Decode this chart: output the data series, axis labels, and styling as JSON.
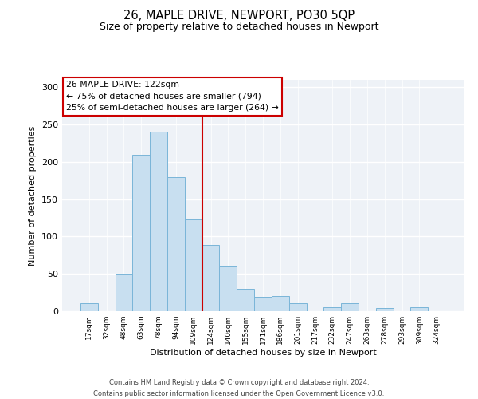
{
  "title": "26, MAPLE DRIVE, NEWPORT, PO30 5QP",
  "subtitle": "Size of property relative to detached houses in Newport",
  "xlabel": "Distribution of detached houses by size in Newport",
  "ylabel": "Number of detached properties",
  "bar_labels": [
    "17sqm",
    "32sqm",
    "48sqm",
    "63sqm",
    "78sqm",
    "94sqm",
    "109sqm",
    "124sqm",
    "140sqm",
    "155sqm",
    "171sqm",
    "186sqm",
    "201sqm",
    "217sqm",
    "232sqm",
    "247sqm",
    "263sqm",
    "278sqm",
    "293sqm",
    "309sqm",
    "324sqm"
  ],
  "bar_values": [
    11,
    0,
    50,
    209,
    240,
    180,
    123,
    89,
    61,
    30,
    19,
    20,
    11,
    0,
    5,
    11,
    0,
    4,
    0,
    5,
    0
  ],
  "bar_color": "#c8dff0",
  "bar_edge_color": "#7ab5d8",
  "ylim": [
    0,
    310
  ],
  "yticks": [
    0,
    50,
    100,
    150,
    200,
    250,
    300
  ],
  "vline_color": "#cc0000",
  "annotation_line1": "26 MAPLE DRIVE: 122sqm",
  "annotation_line2": "← 75% of detached houses are smaller (794)",
  "annotation_line3": "25% of semi-detached houses are larger (264) →",
  "annotation_box_color": "#ffffff",
  "annotation_box_edge": "#cc0000",
  "footer_line1": "Contains HM Land Registry data © Crown copyright and database right 2024.",
  "footer_line2": "Contains public sector information licensed under the Open Government Licence v3.0.",
  "background_color": "#eef2f7"
}
